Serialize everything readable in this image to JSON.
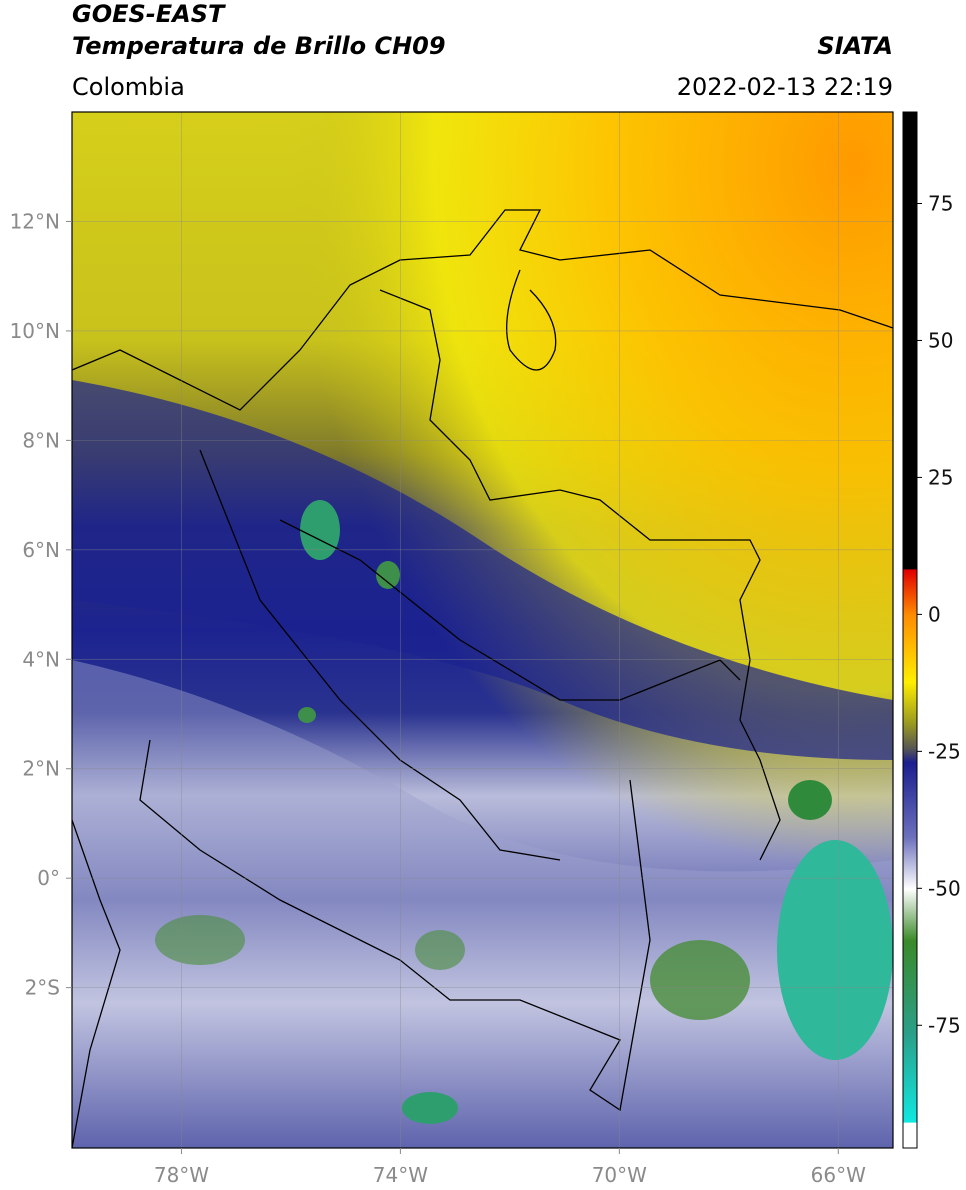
{
  "header": {
    "title": "GOES-EAST",
    "subtitle": "Temperatura de Brillo CH09",
    "source": "SIATA",
    "region": "Colombia",
    "datetime": "2022-02-13 22:19"
  },
  "map": {
    "xlim": [
      -80,
      -65
    ],
    "ylim": [
      -4.93,
      14
    ],
    "xticks": [
      {
        "value": -78,
        "label": "78°W"
      },
      {
        "value": -74,
        "label": "74°W"
      },
      {
        "value": -70,
        "label": "70°W"
      },
      {
        "value": -66,
        "label": "66°W"
      }
    ],
    "yticks": [
      {
        "value": 12,
        "label": "12°N"
      },
      {
        "value": 10,
        "label": "10°N"
      },
      {
        "value": 8,
        "label": "8°N"
      },
      {
        "value": 6,
        "label": "6°N"
      },
      {
        "value": 4,
        "label": "4°N"
      },
      {
        "value": 2,
        "label": "2°N"
      },
      {
        "value": 0,
        "label": "0°"
      },
      {
        "value": -2,
        "label": "2°S"
      }
    ]
  },
  "colorbar": {
    "lim": [
      -97.4,
      91.7
    ],
    "ticks": [
      75,
      50,
      25,
      0,
      -25,
      -50,
      -75
    ]
  }
}
